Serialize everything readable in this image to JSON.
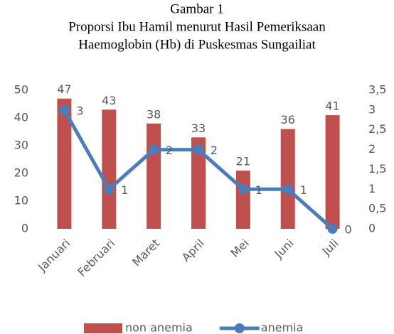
{
  "chart_data": {
    "type": "bar+line",
    "title": "Gambar 1",
    "subtitle": [
      "Proporsi Ibu Hamil menurut Hasil Pemeriksaan",
      "Haemoglobin (Hb) di Puskesmas Sungailiat"
    ],
    "categories": [
      "Januari",
      "Februari",
      "Maret",
      "April",
      "Mei",
      "Juni",
      "Juli"
    ],
    "series": [
      {
        "name": "non anemia",
        "color": "#c0504d",
        "type": "bar",
        "values": [
          47,
          43,
          38,
          33,
          21,
          36,
          41
        ]
      },
      {
        "name": "anemia",
        "color": "#4a7ebb",
        "type": "line",
        "axis": "y2",
        "values": [
          3,
          1,
          2,
          2,
          1,
          1,
          0
        ]
      }
    ],
    "ylim": [
      0,
      50
    ],
    "yticks": [
      0,
      10,
      20,
      30,
      40,
      50
    ],
    "y2lim": [
      0,
      3.5
    ],
    "y2ticks": [
      0,
      {
        "value": 0.5,
        "label": "0,5"
      },
      1,
      {
        "value": 1.5,
        "label": "1,5"
      },
      2,
      {
        "value": 2.5,
        "label": "2,5"
      },
      3,
      {
        "value": 3.5,
        "label": "3,5"
      }
    ],
    "legend": "bottom",
    "grid": false
  }
}
